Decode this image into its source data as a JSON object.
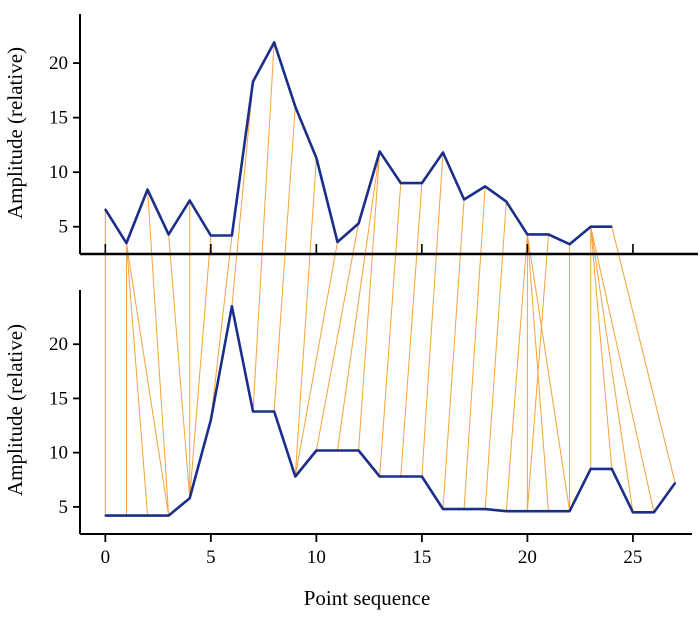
{
  "chart_data": {
    "type": "line",
    "title": "",
    "xlabel": "Point sequence",
    "colors": {
      "series": "#1a2e8a",
      "warp": "#f5a33a",
      "axis": "#000000"
    },
    "x_ticks": [
      0,
      5,
      10,
      15,
      20,
      25
    ],
    "panels": [
      {
        "name": "top",
        "ylabel": "Amplitude (relative)",
        "y_ticks": [
          5,
          10,
          15,
          20
        ],
        "ylim": [
          2.5,
          24.5
        ],
        "xlim": [
          -1.2,
          27.8
        ],
        "x": [
          0,
          1,
          2,
          3,
          4,
          5,
          6,
          7,
          8,
          9,
          10,
          11,
          12,
          13,
          14,
          15,
          16,
          17,
          18,
          19,
          20,
          21,
          22,
          23,
          24
        ],
        "values": [
          6.6,
          3.5,
          8.4,
          4.3,
          7.4,
          4.2,
          4.2,
          18.3,
          21.9,
          16.0,
          11.3,
          3.6,
          5.3,
          11.9,
          9.0,
          9.0,
          11.8,
          7.5,
          8.7,
          7.3,
          4.3,
          4.3,
          3.4,
          5.0,
          5.0
        ]
      },
      {
        "name": "bottom",
        "ylabel": "Amplitude (relative)",
        "y_ticks": [
          5,
          10,
          15,
          20
        ],
        "ylim": [
          2.5,
          25.0
        ],
        "xlim": [
          -1.2,
          27.8
        ],
        "x": [
          0,
          1,
          2,
          3,
          4,
          5,
          6,
          7,
          8,
          9,
          10,
          11,
          12,
          13,
          14,
          15,
          16,
          17,
          18,
          19,
          20,
          21,
          22,
          23,
          24,
          25,
          26,
          27
        ],
        "values": [
          4.2,
          4.2,
          4.2,
          4.2,
          5.8,
          13.0,
          23.5,
          13.8,
          13.8,
          7.8,
          10.2,
          10.2,
          10.2,
          7.8,
          7.8,
          7.8,
          4.8,
          4.8,
          4.8,
          4.6,
          4.6,
          4.6,
          4.6,
          8.5,
          8.5,
          4.5,
          4.5,
          7.2
        ]
      }
    ],
    "warping_path": [
      [
        0,
        0
      ],
      [
        1,
        1
      ],
      [
        1,
        2
      ],
      [
        1,
        3
      ],
      [
        2,
        3
      ],
      [
        3,
        4
      ],
      [
        4,
        4
      ],
      [
        5,
        4
      ],
      [
        6,
        5
      ],
      [
        7,
        6
      ],
      [
        8,
        7
      ],
      [
        9,
        8
      ],
      [
        10,
        9
      ],
      [
        11,
        9
      ],
      [
        12,
        10
      ],
      [
        13,
        11
      ],
      [
        13,
        12
      ],
      [
        14,
        13
      ],
      [
        15,
        14
      ],
      [
        16,
        15
      ],
      [
        17,
        16
      ],
      [
        18,
        17
      ],
      [
        19,
        18
      ],
      [
        20,
        19
      ],
      [
        20,
        20
      ],
      [
        20,
        21
      ],
      [
        20,
        22
      ],
      [
        21,
        20
      ],
      [
        22,
        22
      ],
      [
        23,
        23
      ],
      [
        23,
        24
      ],
      [
        23,
        25
      ],
      [
        23,
        26
      ],
      [
        24,
        27
      ]
    ]
  }
}
